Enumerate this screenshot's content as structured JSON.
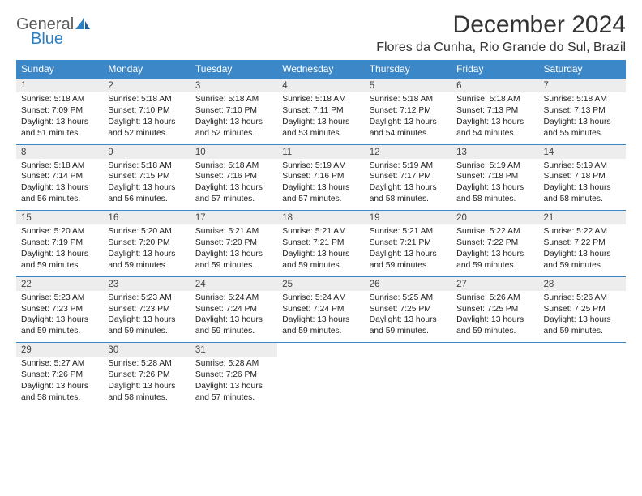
{
  "logo": {
    "line1": "General",
    "line2": "Blue"
  },
  "title": "December 2024",
  "location": "Flores da Cunha, Rio Grande do Sul, Brazil",
  "colors": {
    "header_bg": "#3b87c8",
    "header_text": "#ffffff",
    "day_bg": "#ededed",
    "cell_border": "#3b87c8",
    "logo_gray": "#5a5a5a",
    "logo_blue": "#2f7fbf",
    "body_bg": "#ffffff",
    "text": "#222222"
  },
  "weekdays": [
    "Sunday",
    "Monday",
    "Tuesday",
    "Wednesday",
    "Thursday",
    "Friday",
    "Saturday"
  ],
  "weeks": [
    [
      {
        "n": "1",
        "sr": "5:18 AM",
        "ss": "7:09 PM",
        "dl": "13 hours and 51 minutes."
      },
      {
        "n": "2",
        "sr": "5:18 AM",
        "ss": "7:10 PM",
        "dl": "13 hours and 52 minutes."
      },
      {
        "n": "3",
        "sr": "5:18 AM",
        "ss": "7:10 PM",
        "dl": "13 hours and 52 minutes."
      },
      {
        "n": "4",
        "sr": "5:18 AM",
        "ss": "7:11 PM",
        "dl": "13 hours and 53 minutes."
      },
      {
        "n": "5",
        "sr": "5:18 AM",
        "ss": "7:12 PM",
        "dl": "13 hours and 54 minutes."
      },
      {
        "n": "6",
        "sr": "5:18 AM",
        "ss": "7:13 PM",
        "dl": "13 hours and 54 minutes."
      },
      {
        "n": "7",
        "sr": "5:18 AM",
        "ss": "7:13 PM",
        "dl": "13 hours and 55 minutes."
      }
    ],
    [
      {
        "n": "8",
        "sr": "5:18 AM",
        "ss": "7:14 PM",
        "dl": "13 hours and 56 minutes."
      },
      {
        "n": "9",
        "sr": "5:18 AM",
        "ss": "7:15 PM",
        "dl": "13 hours and 56 minutes."
      },
      {
        "n": "10",
        "sr": "5:18 AM",
        "ss": "7:16 PM",
        "dl": "13 hours and 57 minutes."
      },
      {
        "n": "11",
        "sr": "5:19 AM",
        "ss": "7:16 PM",
        "dl": "13 hours and 57 minutes."
      },
      {
        "n": "12",
        "sr": "5:19 AM",
        "ss": "7:17 PM",
        "dl": "13 hours and 58 minutes."
      },
      {
        "n": "13",
        "sr": "5:19 AM",
        "ss": "7:18 PM",
        "dl": "13 hours and 58 minutes."
      },
      {
        "n": "14",
        "sr": "5:19 AM",
        "ss": "7:18 PM",
        "dl": "13 hours and 58 minutes."
      }
    ],
    [
      {
        "n": "15",
        "sr": "5:20 AM",
        "ss": "7:19 PM",
        "dl": "13 hours and 59 minutes."
      },
      {
        "n": "16",
        "sr": "5:20 AM",
        "ss": "7:20 PM",
        "dl": "13 hours and 59 minutes."
      },
      {
        "n": "17",
        "sr": "5:21 AM",
        "ss": "7:20 PM",
        "dl": "13 hours and 59 minutes."
      },
      {
        "n": "18",
        "sr": "5:21 AM",
        "ss": "7:21 PM",
        "dl": "13 hours and 59 minutes."
      },
      {
        "n": "19",
        "sr": "5:21 AM",
        "ss": "7:21 PM",
        "dl": "13 hours and 59 minutes."
      },
      {
        "n": "20",
        "sr": "5:22 AM",
        "ss": "7:22 PM",
        "dl": "13 hours and 59 minutes."
      },
      {
        "n": "21",
        "sr": "5:22 AM",
        "ss": "7:22 PM",
        "dl": "13 hours and 59 minutes."
      }
    ],
    [
      {
        "n": "22",
        "sr": "5:23 AM",
        "ss": "7:23 PM",
        "dl": "13 hours and 59 minutes."
      },
      {
        "n": "23",
        "sr": "5:23 AM",
        "ss": "7:23 PM",
        "dl": "13 hours and 59 minutes."
      },
      {
        "n": "24",
        "sr": "5:24 AM",
        "ss": "7:24 PM",
        "dl": "13 hours and 59 minutes."
      },
      {
        "n": "25",
        "sr": "5:24 AM",
        "ss": "7:24 PM",
        "dl": "13 hours and 59 minutes."
      },
      {
        "n": "26",
        "sr": "5:25 AM",
        "ss": "7:25 PM",
        "dl": "13 hours and 59 minutes."
      },
      {
        "n": "27",
        "sr": "5:26 AM",
        "ss": "7:25 PM",
        "dl": "13 hours and 59 minutes."
      },
      {
        "n": "28",
        "sr": "5:26 AM",
        "ss": "7:25 PM",
        "dl": "13 hours and 59 minutes."
      }
    ],
    [
      {
        "n": "29",
        "sr": "5:27 AM",
        "ss": "7:26 PM",
        "dl": "13 hours and 58 minutes."
      },
      {
        "n": "30",
        "sr": "5:28 AM",
        "ss": "7:26 PM",
        "dl": "13 hours and 58 minutes."
      },
      {
        "n": "31",
        "sr": "5:28 AM",
        "ss": "7:26 PM",
        "dl": "13 hours and 57 minutes."
      },
      null,
      null,
      null,
      null
    ]
  ],
  "labels": {
    "sunrise": "Sunrise:",
    "sunset": "Sunset:",
    "daylight": "Daylight:"
  }
}
